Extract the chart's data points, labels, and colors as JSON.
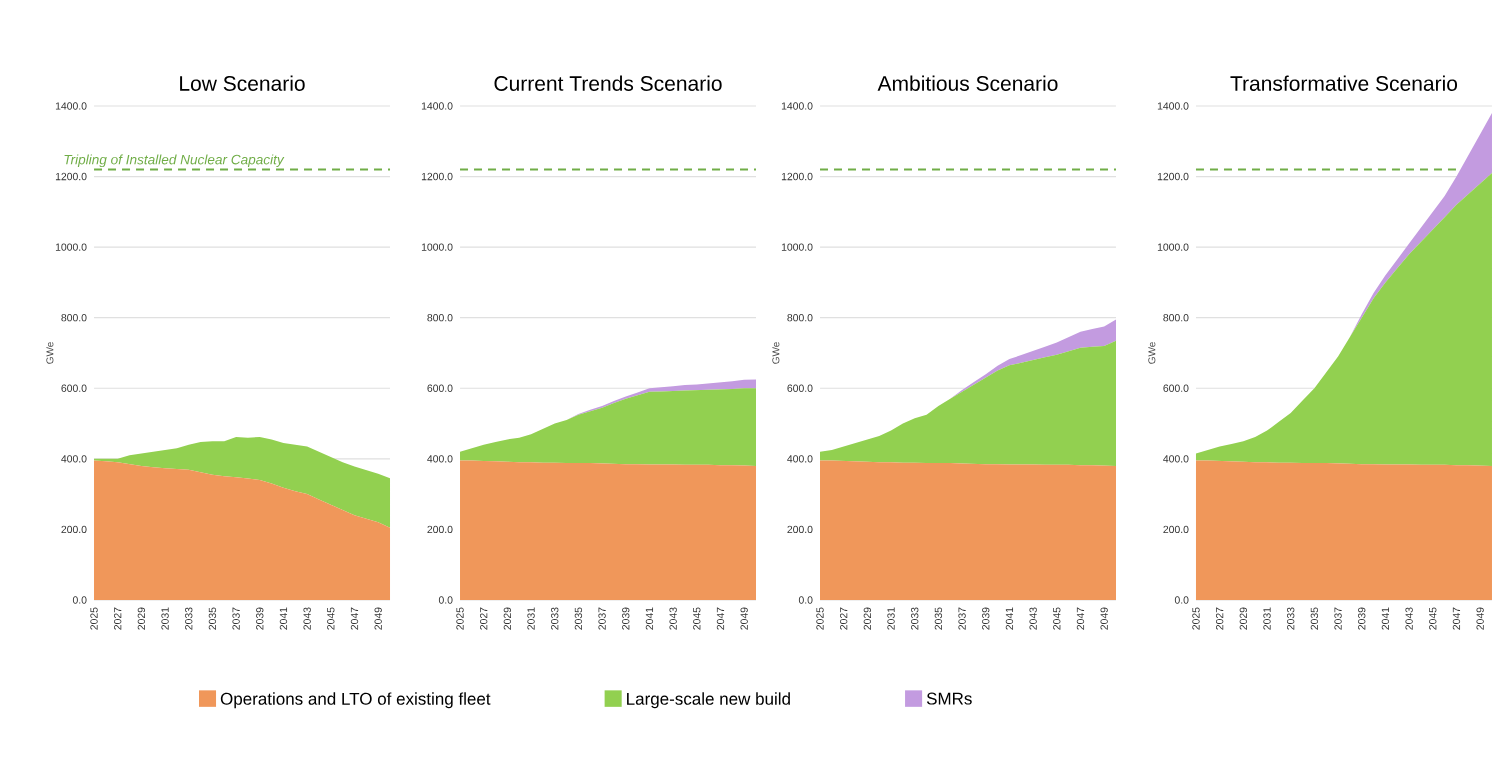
{
  "chart_data": [
    {
      "type": "area",
      "stacked": true,
      "title": "Low Scenario",
      "ylabel": "GWe",
      "categories": [
        "2025",
        null,
        "2027",
        null,
        "2029",
        null,
        "2031",
        null,
        "2033",
        null,
        "2035",
        null,
        "2037",
        null,
        "2039",
        null,
        "2041",
        null,
        "2043",
        null,
        "2045",
        null,
        "2047",
        null,
        "2049",
        null
      ],
      "series": [
        {
          "color": "#f0975a",
          "values": [
            395,
            393,
            390,
            385,
            380,
            376,
            373,
            371,
            369,
            362,
            355,
            351,
            348,
            344,
            340,
            330,
            318,
            308,
            300,
            285,
            270,
            255,
            240,
            230,
            220,
            205
          ]
        },
        {
          "color": "#92d050",
          "values": [
            5,
            7,
            10,
            25,
            35,
            44,
            52,
            59,
            71,
            86,
            95,
            99,
            114,
            116,
            122,
            125,
            127,
            132,
            135,
            135,
            135,
            135,
            138,
            138,
            138,
            140
          ]
        }
      ],
      "ylim": [
        0,
        1400
      ],
      "yticks": [
        {
          "value": 0,
          "label": "0.0"
        },
        {
          "value": 200,
          "label": "200.0"
        },
        {
          "value": 400,
          "label": "400.0"
        },
        {
          "value": 600,
          "label": "600.0"
        },
        {
          "value": 800,
          "label": "800.0"
        },
        {
          "value": 1000,
          "label": "1000.0"
        },
        {
          "value": 1200,
          "label": "1200.0"
        },
        {
          "value": 1400,
          "label": "1400.0"
        }
      ],
      "grid": "y",
      "ref_lines": [
        {
          "axis": "y",
          "value": 1220,
          "label": "Tripling of Installed Nuclear Capacity",
          "color": "#70ad47",
          "line_style": "dashed"
        }
      ]
    },
    {
      "type": "area",
      "stacked": true,
      "title": "Current Trends Scenario",
      "categories": [
        "2025",
        null,
        "2027",
        null,
        "2029",
        null,
        "2031",
        null,
        "2033",
        null,
        "2035",
        null,
        "2037",
        null,
        "2039",
        null,
        "2041",
        null,
        "2043",
        null,
        "2045",
        null,
        "2047",
        null,
        "2049",
        null
      ],
      "series": [
        {
          "color": "#f0975a",
          "values": [
            395,
            395,
            394,
            393,
            392,
            390,
            390,
            389,
            389,
            388,
            388,
            388,
            387,
            386,
            385,
            385,
            384,
            384,
            384,
            383,
            383,
            383,
            382,
            382,
            381,
            380
          ]
        },
        {
          "color": "#92d050",
          "values": [
            25,
            35,
            46,
            55,
            63,
            70,
            80,
            96,
            111,
            122,
            137,
            147,
            158,
            172,
            185,
            195,
            206,
            207,
            208,
            211,
            212,
            213,
            215,
            216,
            219,
            220
          ]
        },
        {
          "color": "#c39be0",
          "values": [
            0,
            0,
            0,
            0,
            0,
            0,
            0,
            0,
            0,
            0,
            2,
            4,
            5,
            6,
            7,
            8,
            10,
            12,
            14,
            15,
            16,
            18,
            20,
            22,
            24,
            25
          ]
        }
      ],
      "ylim": [
        0,
        1400
      ],
      "yticks": [
        {
          "value": 0,
          "label": "0.0"
        },
        {
          "value": 200,
          "label": "200.0"
        },
        {
          "value": 400,
          "label": "400.0"
        },
        {
          "value": 600,
          "label": "600.0"
        },
        {
          "value": 800,
          "label": "800.0"
        },
        {
          "value": 1000,
          "label": "1000.0"
        },
        {
          "value": 1200,
          "label": "1200.0"
        },
        {
          "value": 1400,
          "label": "1400.0"
        }
      ],
      "grid": "y",
      "ref_lines": [
        {
          "axis": "y",
          "value": 1220,
          "color": "#70ad47",
          "line_style": "dashed"
        }
      ]
    },
    {
      "type": "area",
      "stacked": true,
      "title": "Ambitious Scenario",
      "ylabel": "GWe",
      "categories": [
        "2025",
        null,
        "2027",
        null,
        "2029",
        null,
        "2031",
        null,
        "2033",
        null,
        "2035",
        null,
        "2037",
        null,
        "2039",
        null,
        "2041",
        null,
        "2043",
        null,
        "2045",
        null,
        "2047",
        null,
        "2049",
        null
      ],
      "series": [
        {
          "color": "#f0975a",
          "values": [
            395,
            395,
            394,
            393,
            392,
            390,
            390,
            389,
            389,
            388,
            388,
            388,
            387,
            386,
            385,
            385,
            384,
            384,
            384,
            383,
            383,
            383,
            382,
            382,
            381,
            380
          ]
        },
        {
          "color": "#92d050",
          "values": [
            25,
            30,
            41,
            52,
            63,
            75,
            90,
            111,
            126,
            137,
            162,
            182,
            203,
            224,
            245,
            265,
            281,
            288,
            296,
            305,
            312,
            322,
            333,
            336,
            339,
            355
          ]
        },
        {
          "color": "#c39be0",
          "values": [
            0,
            0,
            0,
            0,
            0,
            0,
            0,
            0,
            0,
            0,
            0,
            0,
            5,
            8,
            10,
            14,
            18,
            22,
            26,
            30,
            35,
            40,
            45,
            50,
            55,
            60
          ]
        }
      ],
      "ylim": [
        0,
        1400
      ],
      "yticks": [
        {
          "value": 0,
          "label": "0.0"
        },
        {
          "value": 200,
          "label": "200.0"
        },
        {
          "value": 400,
          "label": "400.0"
        },
        {
          "value": 600,
          "label": "600.0"
        },
        {
          "value": 800,
          "label": "800.0"
        },
        {
          "value": 1000,
          "label": "1000.0"
        },
        {
          "value": 1200,
          "label": "1200.0"
        },
        {
          "value": 1400,
          "label": "1400.0"
        }
      ],
      "grid": "y",
      "ref_lines": [
        {
          "axis": "y",
          "value": 1220,
          "color": "#70ad47",
          "line_style": "dashed"
        }
      ]
    },
    {
      "type": "area",
      "stacked": true,
      "title": "Transformative Scenario",
      "ylabel": "GWe",
      "categories": [
        "2025",
        null,
        "2027",
        null,
        "2029",
        null,
        "2031",
        null,
        "2033",
        null,
        "2035",
        null,
        "2037",
        null,
        "2039",
        null,
        "2041",
        null,
        "2043",
        null,
        "2045",
        null,
        "2047",
        null,
        "2049",
        null
      ],
      "series": [
        {
          "name": "Operations and LTO of existing fleet",
          "color": "#f0975a",
          "values": [
            395,
            395,
            394,
            393,
            392,
            390,
            390,
            389,
            389,
            388,
            388,
            388,
            387,
            386,
            385,
            385,
            384,
            384,
            384,
            383,
            383,
            383,
            382,
            382,
            381,
            380
          ]
        },
        {
          "name": "Large-scale new build",
          "color": "#92d050",
          "values": [
            20,
            30,
            41,
            49,
            58,
            72,
            90,
            116,
            141,
            177,
            212,
            257,
            303,
            359,
            415,
            470,
            516,
            556,
            596,
            632,
            667,
            702,
            738,
            768,
            799,
            830
          ]
        },
        {
          "name": "SMRs",
          "color": "#c39be0",
          "values": [
            0,
            0,
            0,
            0,
            0,
            0,
            0,
            0,
            0,
            0,
            0,
            0,
            0,
            0,
            10,
            15,
            20,
            25,
            30,
            40,
            50,
            60,
            80,
            110,
            140,
            170
          ]
        }
      ],
      "ylim": [
        0,
        1400
      ],
      "yticks": [
        {
          "value": 0,
          "label": "0.0"
        },
        {
          "value": 200,
          "label": "200.0"
        },
        {
          "value": 400,
          "label": "400.0"
        },
        {
          "value": 600,
          "label": "600.0"
        },
        {
          "value": 800,
          "label": "800.0"
        },
        {
          "value": 1000,
          "label": "1000.0"
        },
        {
          "value": 1200,
          "label": "1200.0"
        },
        {
          "value": 1400,
          "label": "1400.0"
        }
      ],
      "grid": "y",
      "legend": "bottom",
      "ref_lines": [
        {
          "axis": "y",
          "value": 1220,
          "color": "#70ad47",
          "line_style": "dashed"
        }
      ]
    }
  ]
}
